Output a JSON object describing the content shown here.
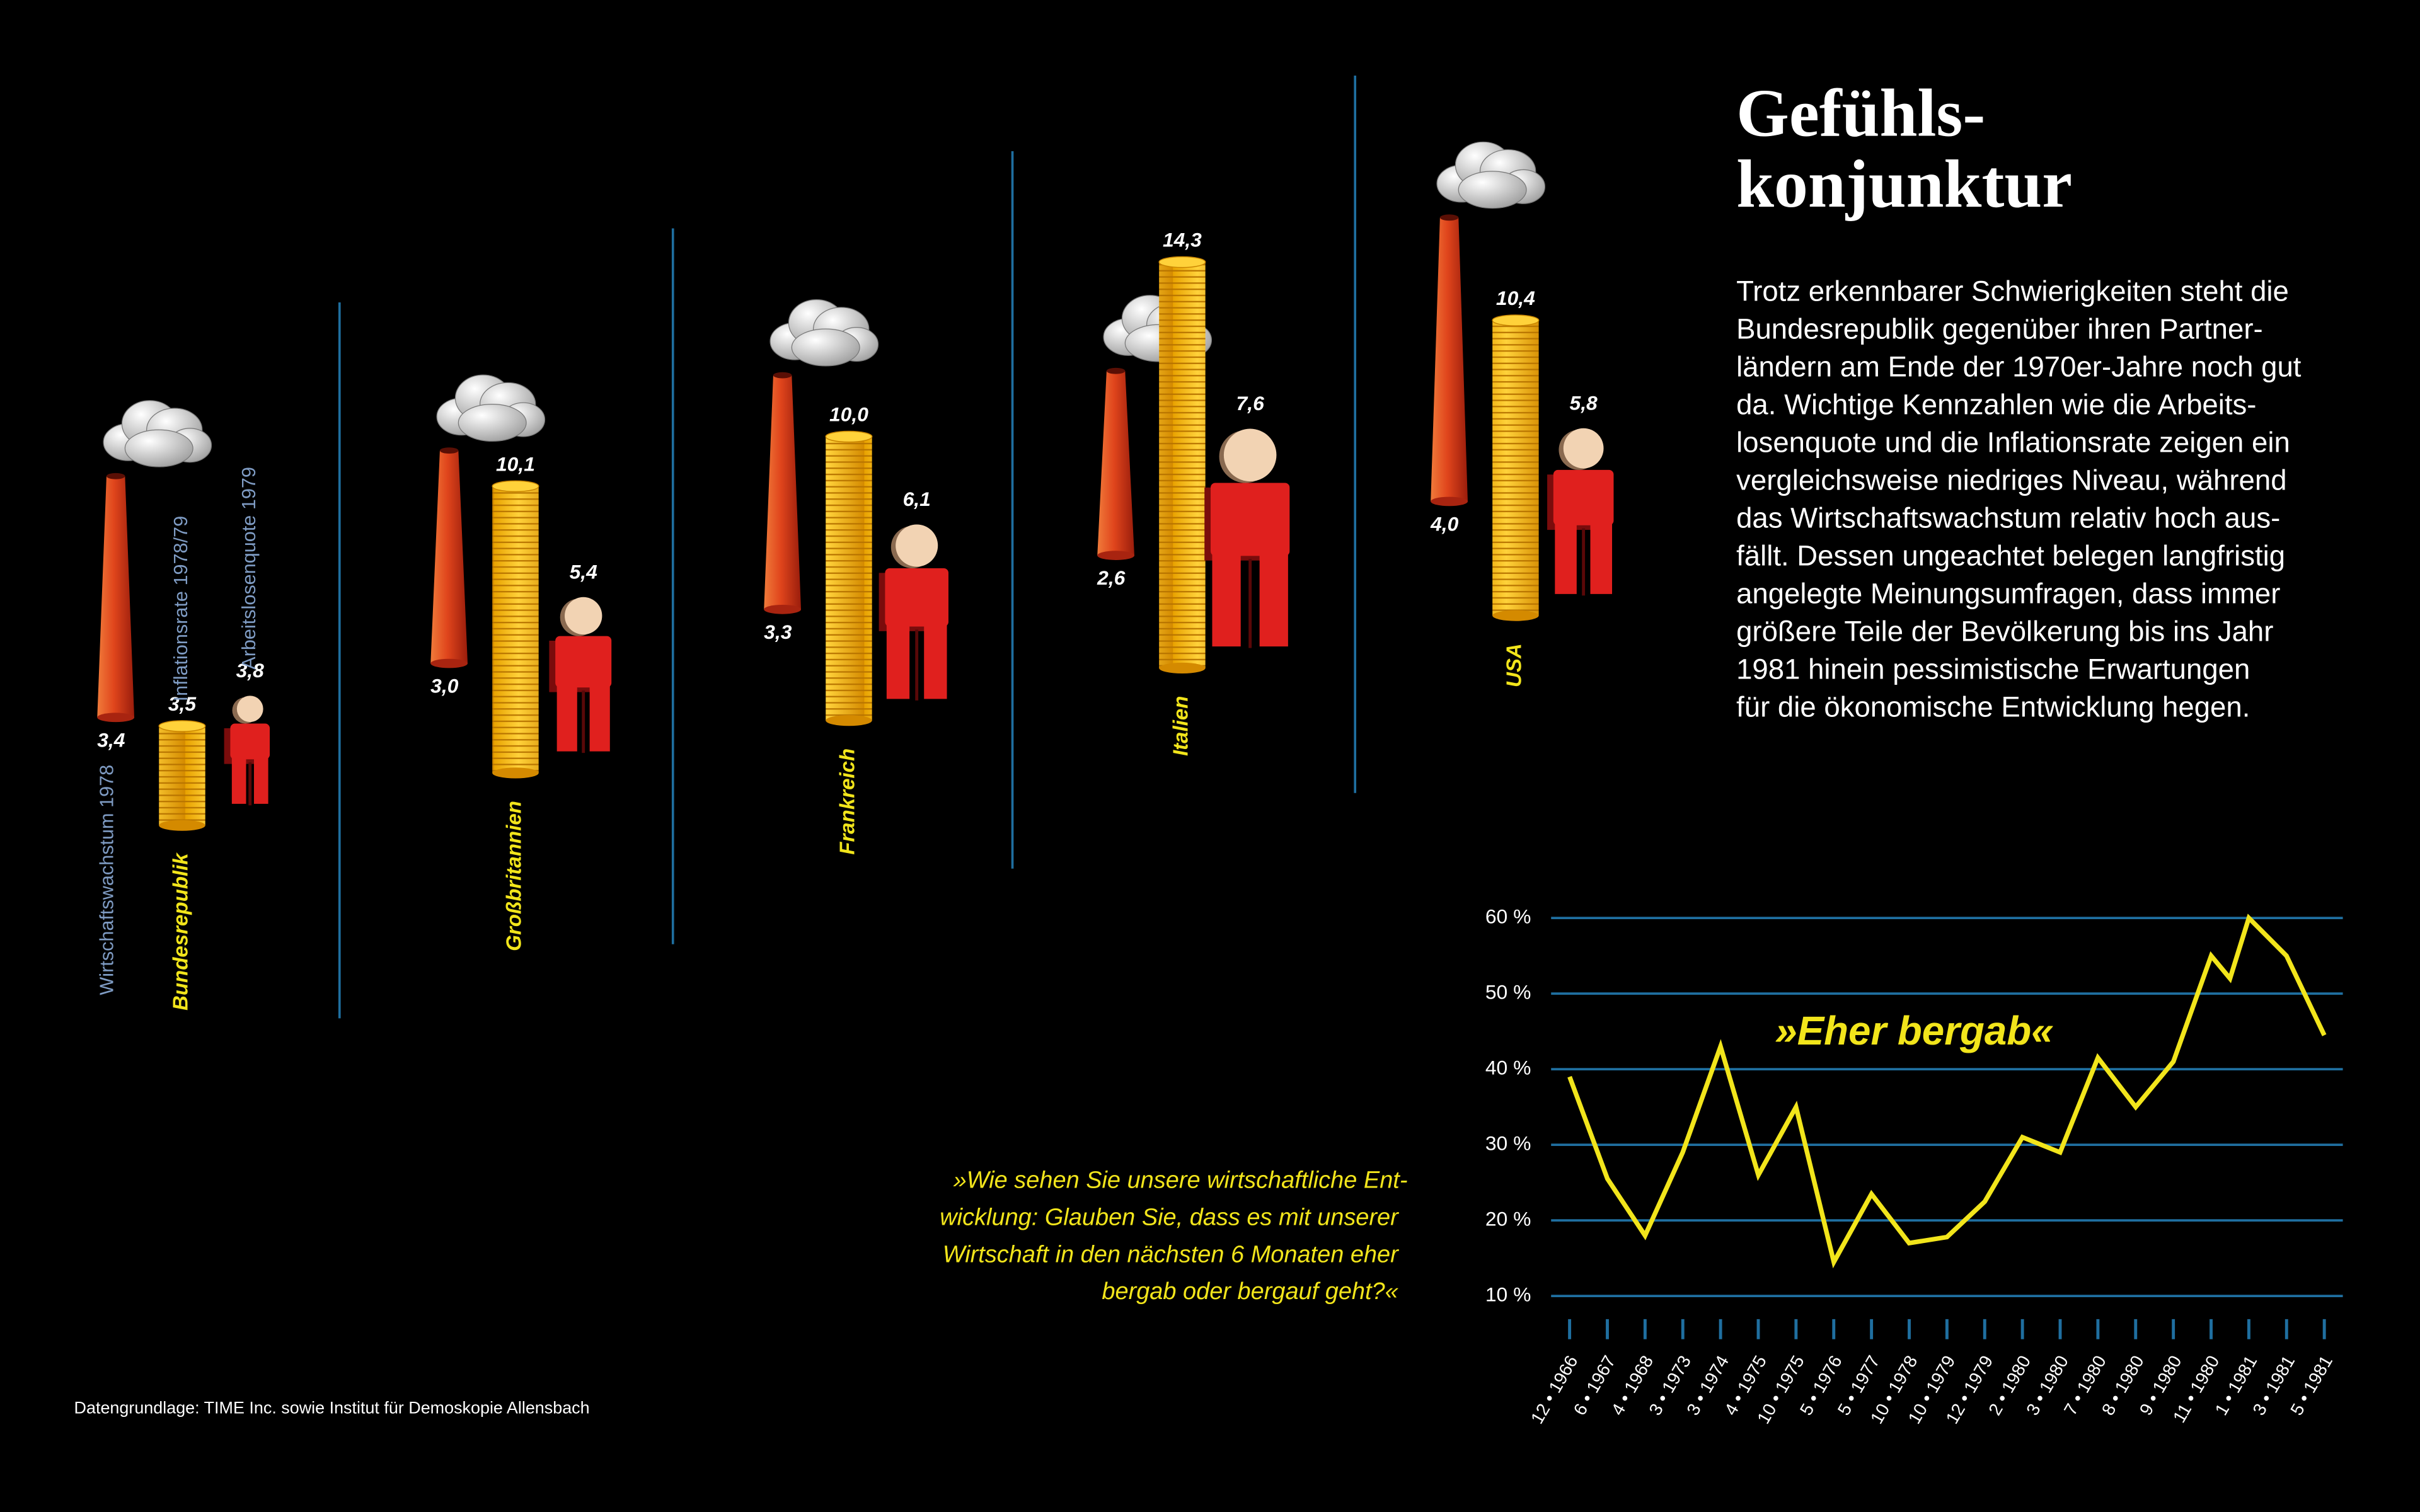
{
  "title": [
    "Gefühls-",
    "konjunktur"
  ],
  "body": [
    "Trotz erkennbarer Schwierigkeiten steht die",
    "Bundesrepublik gegenüber ihren Partner-",
    "ländern am Ende der 1970er-Jahre noch gut",
    "da. Wichtige Kennzahlen wie die Arbeits-",
    "losenquote und die Inflationsrate zeigen ein",
    "vergleichsweise niedriges Niveau, während",
    "das Wirtschaftswachstum relativ hoch aus-",
    "fällt. Dessen ungeachtet belegen langfristig",
    "angelegte Meinungsumfragen, dass immer",
    "größere Teile der Bevölkerung bis ins Jahr",
    "1981 hinein pessimistische Erwartungen",
    "für die ökonomische Entwicklung hegen."
  ],
  "question": [
    "»Wie sehen Sie unsere wirtschaftliche Ent-",
    "wicklung: Glauben Sie, dass es mit unserer",
    "Wirtschaft in den nächsten 6 Monaten eher",
    "bergab oder bergauf geht?«"
  ],
  "source": "Datengrundlage: TIME Inc. sowie Institut für Demoskopie Allensbach",
  "chart_data": [
    {
      "type": "pictogram",
      "categories": [
        "Bundesrepublik",
        "Großbritannien",
        "Frankreich",
        "Italien",
        "USA"
      ],
      "series": [
        {
          "name": "Wirtschaftswachstum 1978",
          "color": "#d8391c",
          "values": [
            3.4,
            3.0,
            3.3,
            2.6,
            4.0
          ],
          "value_labels": [
            "3,4",
            "3,0",
            "3,3",
            "2,6",
            "4,0"
          ]
        },
        {
          "name": "Inflationsrate 1978/79",
          "color": "#f5b800",
          "values": [
            3.5,
            10.1,
            10.0,
            14.3,
            10.4
          ],
          "value_labels": [
            "3,5",
            "10,1",
            "10,0",
            "14,3",
            "10,4"
          ]
        },
        {
          "name": "Arbeitslosenquote 1979",
          "color": "#e0201e",
          "values": [
            3.8,
            5.4,
            6.1,
            7.6,
            5.8
          ],
          "value_labels": [
            "3,8",
            "5,4",
            "6,1",
            "7,6",
            "5,8"
          ]
        }
      ]
    },
    {
      "type": "line",
      "annotation": "»Eher bergab«",
      "categories": [
        "12 • 1966",
        "6 • 1967",
        "4 • 1968",
        "3 • 1973",
        "3 • 1974",
        "4 • 1975",
        "10 • 1975",
        "5 • 1976",
        "5 • 1977",
        "10 • 1978",
        "10 • 1979",
        "12 • 1979",
        "2 • 1980",
        "3 • 1980",
        "7 • 1980",
        "8 • 1980",
        "9 • 1980",
        "11 • 1980",
        null,
        "1 • 1981",
        "3 • 1981",
        "5 • 1981"
      ],
      "values": [
        39,
        25.5,
        18,
        29,
        43,
        26,
        35,
        14.5,
        23.5,
        17,
        17.8,
        22.5,
        31,
        29,
        41.5,
        35,
        41,
        55,
        52,
        60,
        55,
        44.5
      ],
      "color": "#f2e51b",
      "ylim": [
        10,
        60
      ],
      "yticks": [
        {
          "value": 10,
          "label": "10 %"
        },
        {
          "value": 20,
          "label": "20 %"
        },
        {
          "value": 30,
          "label": "30 %"
        },
        {
          "value": 40,
          "label": "40 %"
        },
        {
          "value": 50,
          "label": "50 %"
        },
        {
          "value": 60,
          "label": "60 %"
        }
      ],
      "grid": true
    }
  ]
}
